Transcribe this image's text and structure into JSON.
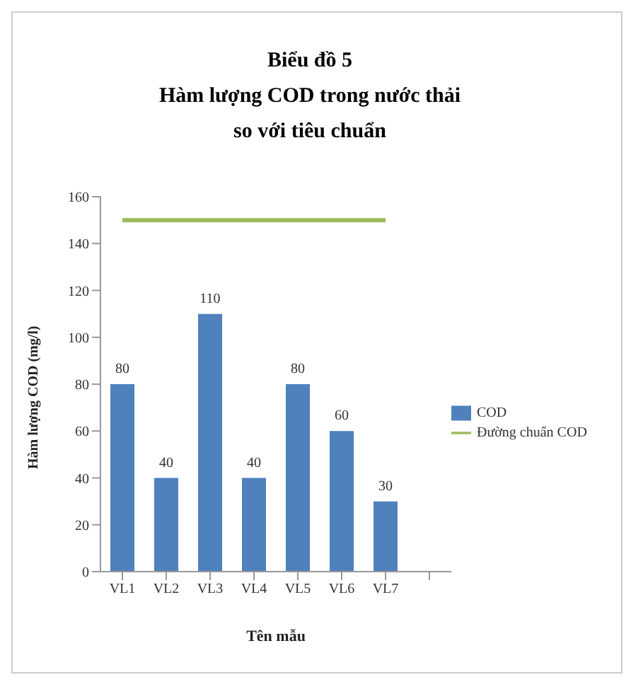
{
  "chart_data": {
    "type": "bar",
    "title": "Biểu đồ 5\nHàm lượng COD trong nước thải\nso với tiêu chuẩn",
    "xlabel": "Tên mẫu",
    "ylabel": "Hàm lượng COD (mg/l)",
    "categories": [
      "VL1",
      "VL2",
      "VL3",
      "VL4",
      "VL5",
      "VL6",
      "VL7",
      null
    ],
    "series": [
      {
        "name": "COD",
        "color": "#4f81bd",
        "values": [
          80,
          40,
          110,
          40,
          80,
          60,
          30,
          null
        ],
        "value_labels": [
          "80",
          "40",
          "110",
          "40",
          "80",
          "60",
          "30",
          null
        ]
      },
      {
        "name": "Đường chuẩn COD",
        "type": "line",
        "color": "#9bbb59",
        "values": [
          150,
          150,
          150,
          150,
          150,
          150,
          150,
          null
        ]
      }
    ],
    "ylim": [
      0,
      160
    ],
    "yticks": [
      0,
      20,
      40,
      60,
      80,
      100,
      120,
      140,
      160
    ],
    "grid": false,
    "legend": "right",
    "marker": "none"
  }
}
